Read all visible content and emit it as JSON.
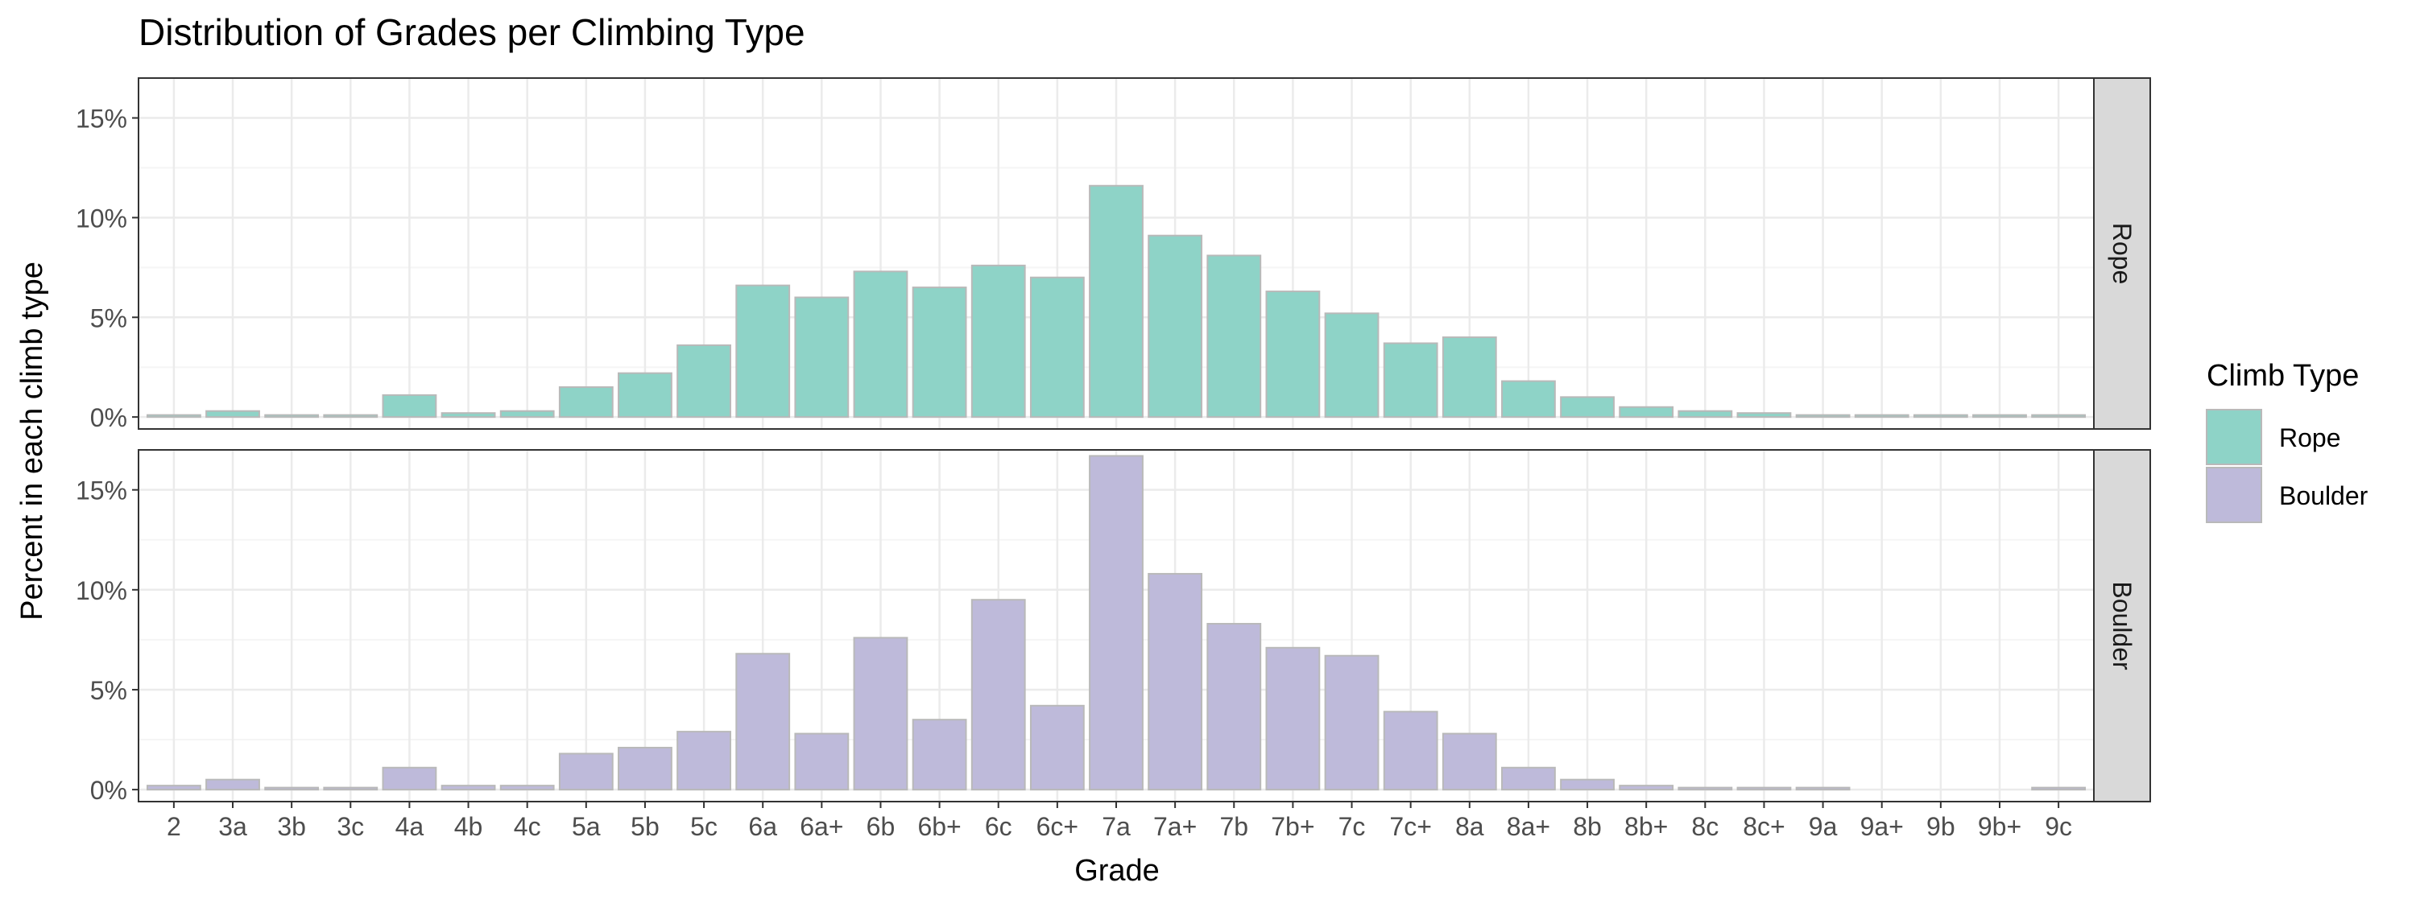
{
  "chart_data": {
    "type": "bar",
    "title": "Distribution of Grades per Climbing Type",
    "xlabel": "Grade",
    "ylabel": "Percent in each climb type",
    "categories": [
      "2",
      "3a",
      "3b",
      "3c",
      "4a",
      "4b",
      "4c",
      "5a",
      "5b",
      "5c",
      "6a",
      "6a+",
      "6b",
      "6b+",
      "6c",
      "6c+",
      "7a",
      "7a+",
      "7b",
      "7b+",
      "7c",
      "7c+",
      "8a",
      "8a+",
      "8b",
      "8b+",
      "8c",
      "8c+",
      "9a",
      "9a+",
      "9b",
      "9b+",
      "9c"
    ],
    "ylim": [
      0,
      17
    ],
    "yticks": [
      0,
      5,
      10,
      15
    ],
    "ytick_labels": [
      "0%",
      "5%",
      "10%",
      "15%"
    ],
    "grid": true,
    "legend_title": "Climb Type",
    "legend_position": "right",
    "facets": [
      {
        "name": "Rope",
        "color": "#8ED3C7",
        "values": [
          0.1,
          0.3,
          0.1,
          0.1,
          1.1,
          0.2,
          0.3,
          1.5,
          2.2,
          3.6,
          6.6,
          6.0,
          7.3,
          6.5,
          7.6,
          7.0,
          11.6,
          9.1,
          8.1,
          6.3,
          5.2,
          3.7,
          4.0,
          1.8,
          1.0,
          0.5,
          0.3,
          0.2,
          0.1,
          0.1,
          0.1,
          0.1,
          0.1
        ]
      },
      {
        "name": "Boulder",
        "color": "#BEBADA",
        "values": [
          0.2,
          0.5,
          0.1,
          0.1,
          1.1,
          0.2,
          0.2,
          1.8,
          2.1,
          2.9,
          6.8,
          2.8,
          7.6,
          3.5,
          9.5,
          4.2,
          16.7,
          10.8,
          8.3,
          7.1,
          6.7,
          3.9,
          2.8,
          1.1,
          0.5,
          0.2,
          0.1,
          0.1,
          0.1,
          0,
          0,
          0,
          0.1
        ]
      }
    ]
  },
  "colors": {
    "bar_outline": "#b9b9b9",
    "panel_border": "#333333",
    "strip_fill": "#d9d9d9",
    "grid_major": "#ebebeb",
    "grid_minor": "#f5f5f5",
    "axis_text": "#4d4d4d"
  }
}
